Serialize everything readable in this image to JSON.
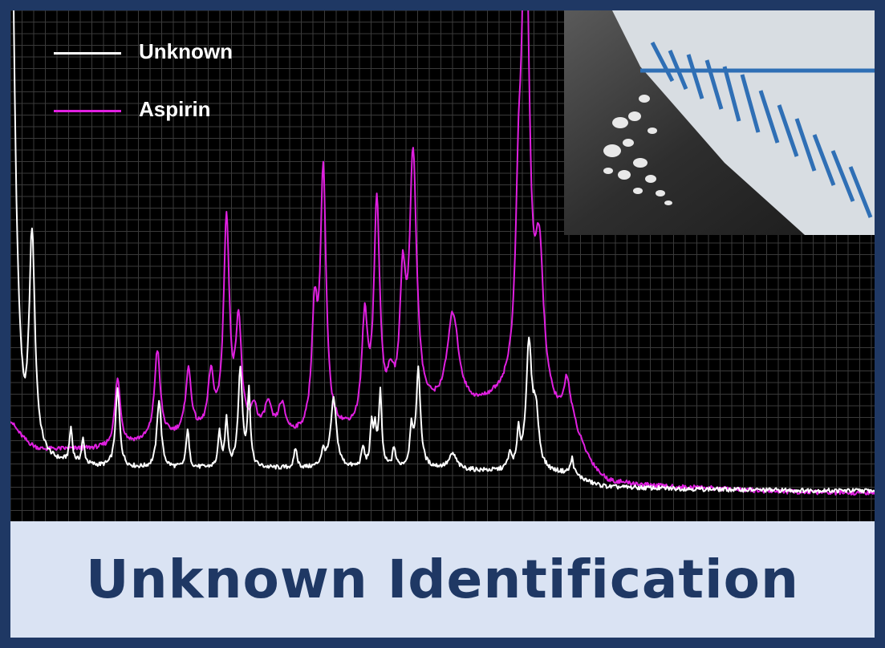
{
  "title": "Unknown Identification",
  "chart_data": {
    "type": "line",
    "title": "",
    "xlabel": "",
    "ylabel": "",
    "grid": true,
    "legend_position": "top-left",
    "xlim": [
      0,
      1000
    ],
    "ylim": [
      0,
      100
    ],
    "series": [
      {
        "name": "Unknown",
        "color": "#ffffff",
        "baseline": [
          [
            0,
            75
          ],
          [
            20,
            10
          ],
          [
            60,
            7
          ],
          [
            150,
            6
          ],
          [
            300,
            6
          ],
          [
            500,
            6
          ],
          [
            650,
            5
          ],
          [
            700,
            2.2
          ],
          [
            1000,
            1.5
          ]
        ],
        "peaks": [
          [
            0,
            88,
            4
          ],
          [
            25,
            44,
            4
          ],
          [
            70,
            7,
            2
          ],
          [
            84,
            5,
            2
          ],
          [
            124,
            16,
            3
          ],
          [
            172,
            14,
            3
          ],
          [
            205,
            8,
            2
          ],
          [
            242,
            7,
            2
          ],
          [
            250,
            10,
            2
          ],
          [
            266,
            20,
            3
          ],
          [
            276,
            15,
            2
          ],
          [
            330,
            4,
            2
          ],
          [
            362,
            3,
            3
          ],
          [
            374,
            14,
            4
          ],
          [
            408,
            4,
            2
          ],
          [
            418,
            8,
            2
          ],
          [
            422,
            7,
            2
          ],
          [
            428,
            15,
            2
          ],
          [
            444,
            4,
            2
          ],
          [
            464,
            8,
            2
          ],
          [
            472,
            20,
            3
          ],
          [
            512,
            3,
            5
          ],
          [
            578,
            3,
            3
          ],
          [
            588,
            7,
            2
          ],
          [
            600,
            25,
            4
          ],
          [
            608,
            11,
            4
          ],
          [
            650,
            3,
            2
          ]
        ]
      },
      {
        "name": "Aspirin",
        "color": "#e020e0",
        "baseline": [
          [
            0,
            16
          ],
          [
            40,
            10
          ],
          [
            120,
            10
          ],
          [
            250,
            13
          ],
          [
            340,
            12
          ],
          [
            400,
            13
          ],
          [
            470,
            16
          ],
          [
            540,
            18
          ],
          [
            600,
            20
          ],
          [
            650,
            15
          ],
          [
            700,
            3
          ],
          [
            800,
            2
          ],
          [
            1000,
            1
          ]
        ],
        "peaks": [
          [
            124,
            14,
            4
          ],
          [
            170,
            18,
            4
          ],
          [
            206,
            13,
            4
          ],
          [
            232,
            11,
            4
          ],
          [
            250,
            43,
            4
          ],
          [
            264,
            22,
            4
          ],
          [
            282,
            5,
            4
          ],
          [
            298,
            6,
            5
          ],
          [
            314,
            6,
            5
          ],
          [
            352,
            23,
            4
          ],
          [
            362,
            52,
            4
          ],
          [
            410,
            21,
            4
          ],
          [
            424,
            44,
            4
          ],
          [
            440,
            6,
            4
          ],
          [
            454,
            25,
            4
          ],
          [
            466,
            52,
            5
          ],
          [
            512,
            19,
            8
          ],
          [
            588,
            28,
            4
          ],
          [
            596,
            100,
            5
          ],
          [
            612,
            28,
            6
          ],
          [
            644,
            8,
            4
          ]
        ]
      }
    ]
  }
}
